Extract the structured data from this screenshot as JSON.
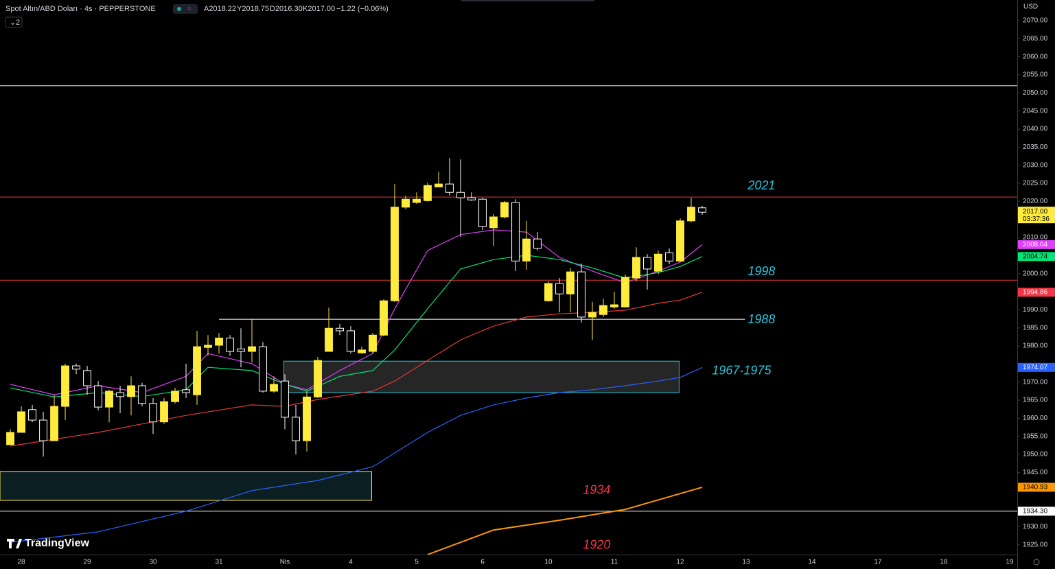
{
  "chart_data": {
    "type": "candlestick",
    "title": "Spot Altın/ABD Doları · 4s · PEPPERSTONE",
    "ohlc_header": [
      "A2018.22",
      "Y2018.75",
      "D2016.30",
      "K2017.00",
      "−1.22 (−0.06%)"
    ],
    "interval_badge": "2",
    "currency": "USD",
    "logo": "TradingView",
    "xlim": [
      -0.94,
      91.69
    ],
    "ylim": [
      1922.3,
      2075.7
    ],
    "xticks": [
      {
        "value": 1,
        "label": "28"
      },
      {
        "value": 7,
        "label": "29"
      },
      {
        "value": 13,
        "label": "30"
      },
      {
        "value": 19,
        "label": "31"
      },
      {
        "value": 25,
        "label": "Nis"
      },
      {
        "value": 31,
        "label": "4"
      },
      {
        "value": 37,
        "label": "5"
      },
      {
        "value": 43,
        "label": "6"
      },
      {
        "value": 49,
        "label": "10"
      },
      {
        "value": 55,
        "label": "11"
      },
      {
        "value": 61,
        "label": "12"
      },
      {
        "value": 67,
        "label": "13"
      },
      {
        "value": 73,
        "label": "14"
      },
      {
        "value": 79,
        "label": "17"
      },
      {
        "value": 85,
        "label": "18"
      },
      {
        "value": 91,
        "label": "19"
      }
    ],
    "yticks": [
      {
        "value": 2070,
        "label": "2070.00"
      },
      {
        "value": 2065,
        "label": "2065.00"
      },
      {
        "value": 2060,
        "label": "2060.00"
      },
      {
        "value": 2055,
        "label": "2055.00"
      },
      {
        "value": 2050,
        "label": "2050.00"
      },
      {
        "value": 2045,
        "label": "2045.00"
      },
      {
        "value": 2040,
        "label": "2040.00"
      },
      {
        "value": 2035,
        "label": "2035.00"
      },
      {
        "value": 2030,
        "label": "2030.00"
      },
      {
        "value": 2025,
        "label": "2025.00"
      },
      {
        "value": 2020,
        "label": "2020.00"
      },
      {
        "value": 2010,
        "label": "2010.00"
      },
      {
        "value": 2000,
        "label": "2000.00"
      },
      {
        "value": 1990,
        "label": "1990.00"
      },
      {
        "value": 1985,
        "label": "1985.00"
      },
      {
        "value": 1980,
        "label": "1980.00"
      },
      {
        "value": 1970,
        "label": "1970.00"
      },
      {
        "value": 1965,
        "label": "1965.00"
      },
      {
        "value": 1960,
        "label": "1960.00"
      },
      {
        "value": 1955,
        "label": "1955.00"
      },
      {
        "value": 1950,
        "label": "1950.00"
      },
      {
        "value": 1945,
        "label": "1945.00"
      },
      {
        "value": 1930,
        "label": "1930.00"
      },
      {
        "value": 1925,
        "label": "1925.00"
      }
    ],
    "up_color": "#ffeb3b",
    "down_color": "#ffffff",
    "open": [
      1952.7,
      1956.1,
      1962.4,
      1959.5,
      1953.8,
      1963.3,
      1974.5,
      1973.2,
      1969.0,
      1963.1,
      1967.1,
      1966.0,
      1969.0,
      1964.1,
      1959.0,
      1964.6,
      1967.9,
      1966.5,
      1979.6,
      1980.2,
      1982.2,
      1979.2,
      1978.5,
      1979.8,
      1967.5,
      1970.3,
      1960.3,
      1953.8,
      1965.9,
      1978.5,
      1984.9,
      1984.2,
      1978.1,
      1978.5,
      1983.0,
      1992.5,
      2018.4,
      2019.7,
      2020.2,
      2024.0,
      2024.8,
      2022.5,
      2021.0,
      2020.6,
      2012.7,
      2015.7,
      2019.7,
      2003.5,
      2009.6,
      1992.5,
      1997.3,
      1994.4,
      2000.5,
      1988.0,
      1988.7,
      1990.8,
      1990.8,
      1998.8,
      2004.5,
      2000.7,
      2005.8,
      2003.5,
      2014.6,
      2018.22
    ],
    "high": [
      1957.0,
      1963.3,
      1963.7,
      1961.8,
      1966.5,
      1975.1,
      1975.1,
      1974.5,
      1970.3,
      1967.9,
      1969.0,
      1971.6,
      1969.8,
      1965.6,
      1965.6,
      1968.4,
      1975.1,
      1984.2,
      1983.0,
      1983.6,
      1983.0,
      1984.9,
      1987.4,
      1981.1,
      1971.6,
      1972.2,
      1963.7,
      1967.5,
      1977.0,
      1990.6,
      1986.1,
      1985.5,
      1979.8,
      1983.6,
      1992.9,
      2024.8,
      2021.6,
      2022.5,
      2025.2,
      2028.2,
      2032.0,
      2031.6,
      2022.5,
      2021.0,
      2016.5,
      2020.1,
      2020.6,
      2014.6,
      2011.5,
      1997.9,
      1998.8,
      2001.6,
      2002.8,
      1992.2,
      1993.1,
      1995.0,
      1999.8,
      2007.3,
      2005.4,
      2006.4,
      2007.0,
      2015.3,
      2021.0,
      2018.75
    ],
    "low": [
      1952.7,
      1956.1,
      1958.9,
      1949.4,
      1953.8,
      1959.5,
      1972.2,
      1966.5,
      1962.2,
      1958.9,
      1961.4,
      1960.8,
      1963.3,
      1955.7,
      1958.4,
      1964.1,
      1965.6,
      1963.7,
      1977.3,
      1977.9,
      1977.3,
      1974.1,
      1975.4,
      1967.1,
      1967.1,
      1957.0,
      1950.0,
      1950.8,
      1965.6,
      1978.5,
      1983.0,
      1977.9,
      1977.9,
      1977.9,
      1982.7,
      1992.2,
      2017.8,
      2019.3,
      2019.9,
      2024.0,
      2021.6,
      2010.2,
      2020.1,
      2012.1,
      2007.7,
      2015.3,
      2000.7,
      2001.1,
      2006.4,
      1992.2,
      1989.3,
      1989.3,
      1986.5,
      1981.7,
      1988.0,
      1990.3,
      1990.6,
      1997.9,
      1995.6,
      1999.8,
      2002.6,
      2003.2,
      2014.2,
      2016.3
    ],
    "close": [
      1956.1,
      1961.8,
      1959.5,
      1953.8,
      1963.3,
      1974.5,
      1973.6,
      1969.0,
      1963.1,
      1967.5,
      1966.0,
      1969.0,
      1964.1,
      1959.0,
      1964.6,
      1967.5,
      1967.1,
      1979.8,
      1980.2,
      1982.2,
      1978.5,
      1978.5,
      1979.8,
      1967.5,
      1969.4,
      1960.3,
      1953.8,
      1965.9,
      1976.0,
      1984.9,
      1984.2,
      1978.5,
      1978.9,
      1983.0,
      1992.5,
      2018.4,
      2020.6,
      2020.6,
      2024.4,
      2024.8,
      2022.5,
      2021.0,
      2020.4,
      2013.0,
      2015.7,
      2019.7,
      2003.5,
      2009.6,
      2007.0,
      1997.3,
      1994.4,
      2000.5,
      1988.0,
      1989.3,
      1991.2,
      1991.4,
      1999.0,
      2004.5,
      2001.3,
      2005.4,
      2003.5,
      2014.6,
      2018.4,
      2017.0
    ],
    "series": [
      {
        "color": "#e040fb",
        "x": [
          0,
          4,
          8,
          12,
          16,
          18,
          22,
          25,
          27,
          30,
          33,
          35,
          38,
          41,
          44,
          47,
          50,
          53,
          56,
          59,
          61,
          63
        ],
        "values": [
          1969.4,
          1966.5,
          1969.0,
          1967.1,
          1971.6,
          1977.9,
          1975.1,
          1969.4,
          1967.9,
          1973.2,
          1977.9,
          1990.3,
          2006.4,
          2010.8,
          2012.1,
          2011.5,
          2004.5,
          2000.7,
          1997.5,
          2000.7,
          2003.2,
          2008.04
        ]
      },
      {
        "color": "#00e676",
        "x": [
          0,
          4,
          8,
          12,
          16,
          18,
          22,
          25,
          27,
          30,
          33,
          35,
          38,
          41,
          44,
          47,
          50,
          53,
          56,
          59,
          61,
          63
        ],
        "values": [
          1968.4,
          1965.9,
          1967.1,
          1966.0,
          1967.9,
          1974.1,
          1973.2,
          1969.4,
          1967.5,
          1971.6,
          1973.2,
          1978.9,
          1990.3,
          2001.3,
          2003.9,
          2005.1,
          2003.9,
          2001.6,
          1998.8,
          2000.3,
          2002.0,
          2004.74
        ]
      },
      {
        "color": "#e53935",
        "x": [
          0,
          8,
          16,
          22,
          25,
          28,
          33,
          35,
          38,
          41,
          44,
          47,
          50,
          53,
          56,
          59,
          61,
          63
        ],
        "values": [
          1952.3,
          1956.1,
          1960.8,
          1963.7,
          1963.3,
          1965.2,
          1967.5,
          1970.3,
          1976.0,
          1981.7,
          1985.5,
          1988.0,
          1988.9,
          1989.3,
          1989.9,
          1991.8,
          1992.7,
          1994.86
        ]
      },
      {
        "color": "#2962ff",
        "x": [
          0,
          8,
          16,
          22,
          28,
          33,
          35,
          38,
          41,
          44,
          47,
          50,
          53,
          56,
          59,
          61,
          63
        ],
        "values": [
          1925.7,
          1928.6,
          1934.3,
          1940.0,
          1942.8,
          1946.6,
          1950.4,
          1956.1,
          1960.8,
          1963.7,
          1965.6,
          1967.1,
          1967.9,
          1969.0,
          1970.3,
          1971.3,
          1974.07
        ]
      },
      {
        "color": "#ff9800",
        "x": [
          38,
          44,
          50,
          56,
          63
        ],
        "values": [
          1922.3,
          1929.1,
          1931.8,
          1934.8,
          1940.93
        ]
      }
    ],
    "hlines": [
      {
        "value": 2052.0,
        "color": "#ffffff"
      },
      {
        "value": 2021.2,
        "color": "#e53935"
      },
      {
        "value": 1998.2,
        "color": "#e53935"
      },
      {
        "value": 1934.3,
        "color": "#ffffff"
      }
    ],
    "segments": [
      {
        "value": 1987.4,
        "start": 19,
        "end": 66.9,
        "color": "#ffffff"
      }
    ],
    "boxes": [
      {
        "top": 1975.8,
        "bottom": 1967.1,
        "start": 24.9,
        "end": 60.9,
        "color": "#26c6da",
        "fill": "#262626"
      },
      {
        "top": 1945.3,
        "bottom": 1937.3,
        "start": -0.94,
        "end": 32.9,
        "color": "#ffeb3b",
        "fill": "#0b1e22"
      }
    ],
    "annotations": [
      {
        "text": "2021",
        "color": "#26c6da"
      },
      {
        "text": "1998",
        "color": "#26c6da"
      },
      {
        "text": "1988",
        "color": "#26c6da"
      },
      {
        "text": "1967-1975",
        "color": "#26c6da"
      },
      {
        "text": "1934",
        "color": "#f23645"
      },
      {
        "text": "1920",
        "color": "#f23645"
      }
    ],
    "badges": [
      {
        "value": 2017.0,
        "label": "2017.00",
        "countdown": "03:37:36",
        "bg": "#ffeb3b",
        "fg": "#000000"
      },
      {
        "value": 2008.04,
        "label": "2008.04",
        "bg": "#e040fb",
        "fg": "#ffffff"
      },
      {
        "value": 2004.74,
        "label": "2004.74",
        "bg": "#00e676",
        "fg": "#000000"
      },
      {
        "value": 1994.86,
        "label": "1994.86",
        "bg": "#f23645",
        "fg": "#ffffff"
      },
      {
        "value": 1974.07,
        "label": "1974.07",
        "bg": "#2962ff",
        "fg": "#ffffff"
      },
      {
        "value": 1940.93,
        "label": "1940.93",
        "bg": "#ff9800",
        "fg": "#000000"
      },
      {
        "value": 1934.3,
        "label": "1934.30",
        "bg": "#ffffff",
        "fg": "#000000"
      }
    ]
  }
}
